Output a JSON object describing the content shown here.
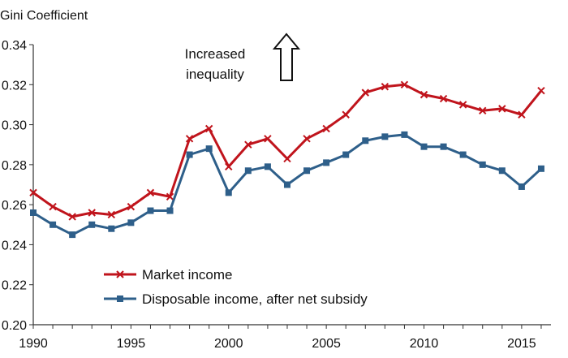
{
  "chart_data": {
    "type": "line",
    "ylabel": "Gini Coefficient",
    "annotation": [
      "Increased",
      "inequality"
    ],
    "annotation_icon": "up-arrow-icon",
    "ylim": [
      0.2,
      0.34
    ],
    "xlim": [
      1990,
      2016.5
    ],
    "yticks": [
      "0.20",
      "0.22",
      "0.24",
      "0.26",
      "0.28",
      "0.30",
      "0.32",
      "0.34"
    ],
    "xticks": [
      "1990",
      "1995",
      "2000",
      "2005",
      "2010",
      "2015"
    ],
    "grid": false,
    "legend_position": "bottom-left",
    "x": [
      1990,
      1991,
      1992,
      1993,
      1994,
      1995,
      1996,
      1997,
      1998,
      1999,
      2000,
      2001,
      2002,
      2003,
      2004,
      2005,
      2006,
      2007,
      2008,
      2009,
      2010,
      2011,
      2012,
      2013,
      2014,
      2015,
      2016
    ],
    "series": [
      {
        "name": "Market income",
        "color": "#c0141c",
        "marker": "x",
        "values": [
          0.266,
          0.259,
          0.254,
          0.256,
          0.255,
          0.259,
          0.266,
          0.264,
          0.293,
          0.298,
          0.279,
          0.29,
          0.293,
          0.283,
          0.293,
          0.298,
          0.305,
          0.316,
          0.319,
          0.32,
          0.315,
          0.313,
          0.31,
          0.307,
          0.308,
          0.305,
          0.317
        ]
      },
      {
        "name": "Disposable income, after net subsidy",
        "color": "#2e5f8a",
        "marker": "square",
        "values": [
          0.256,
          0.25,
          0.245,
          0.25,
          0.248,
          0.251,
          0.257,
          0.257,
          0.285,
          0.288,
          0.266,
          0.277,
          0.279,
          0.27,
          0.277,
          0.281,
          0.285,
          0.292,
          0.294,
          0.295,
          0.289,
          0.289,
          0.285,
          0.28,
          0.277,
          0.269,
          0.278
        ]
      }
    ]
  }
}
